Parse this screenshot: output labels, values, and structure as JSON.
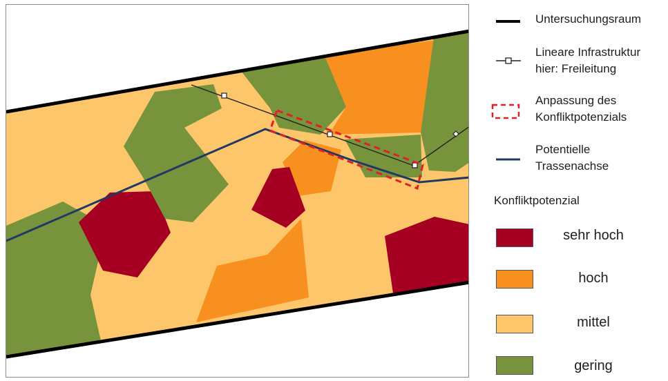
{
  "legend": {
    "study_area": "Untersuchungsraum",
    "linear_infrastructure_line1": "Lineare Infrastruktur",
    "linear_infrastructure_line2": "hier: Freileitung",
    "adjustment_line1": "Anpassung des",
    "adjustment_line2": "Konfliktpotenzials",
    "route_axis_line1": "Potentielle",
    "route_axis_line2": "Trassenachse",
    "conflict_title": "Konfliktpotenzial",
    "classes": [
      {
        "label": "sehr hoch",
        "color": "#a50022"
      },
      {
        "label": "hoch",
        "color": "#f7901e"
      },
      {
        "label": "mittel",
        "color": "#fdc66b"
      },
      {
        "label": "gering",
        "color": "#77933c"
      }
    ]
  },
  "colors": {
    "very_high": "#a50022",
    "high": "#f7901e",
    "medium": "#fdc66b",
    "low": "#77933c",
    "route_axis": "#1f3864",
    "adjustment": "#e21f26",
    "boundary": "#000000",
    "power_line": "#222222"
  },
  "icons": {
    "power_line_marker": "square-pylon-icon",
    "power_line_marker_alt": "diamond-pylon-icon"
  }
}
